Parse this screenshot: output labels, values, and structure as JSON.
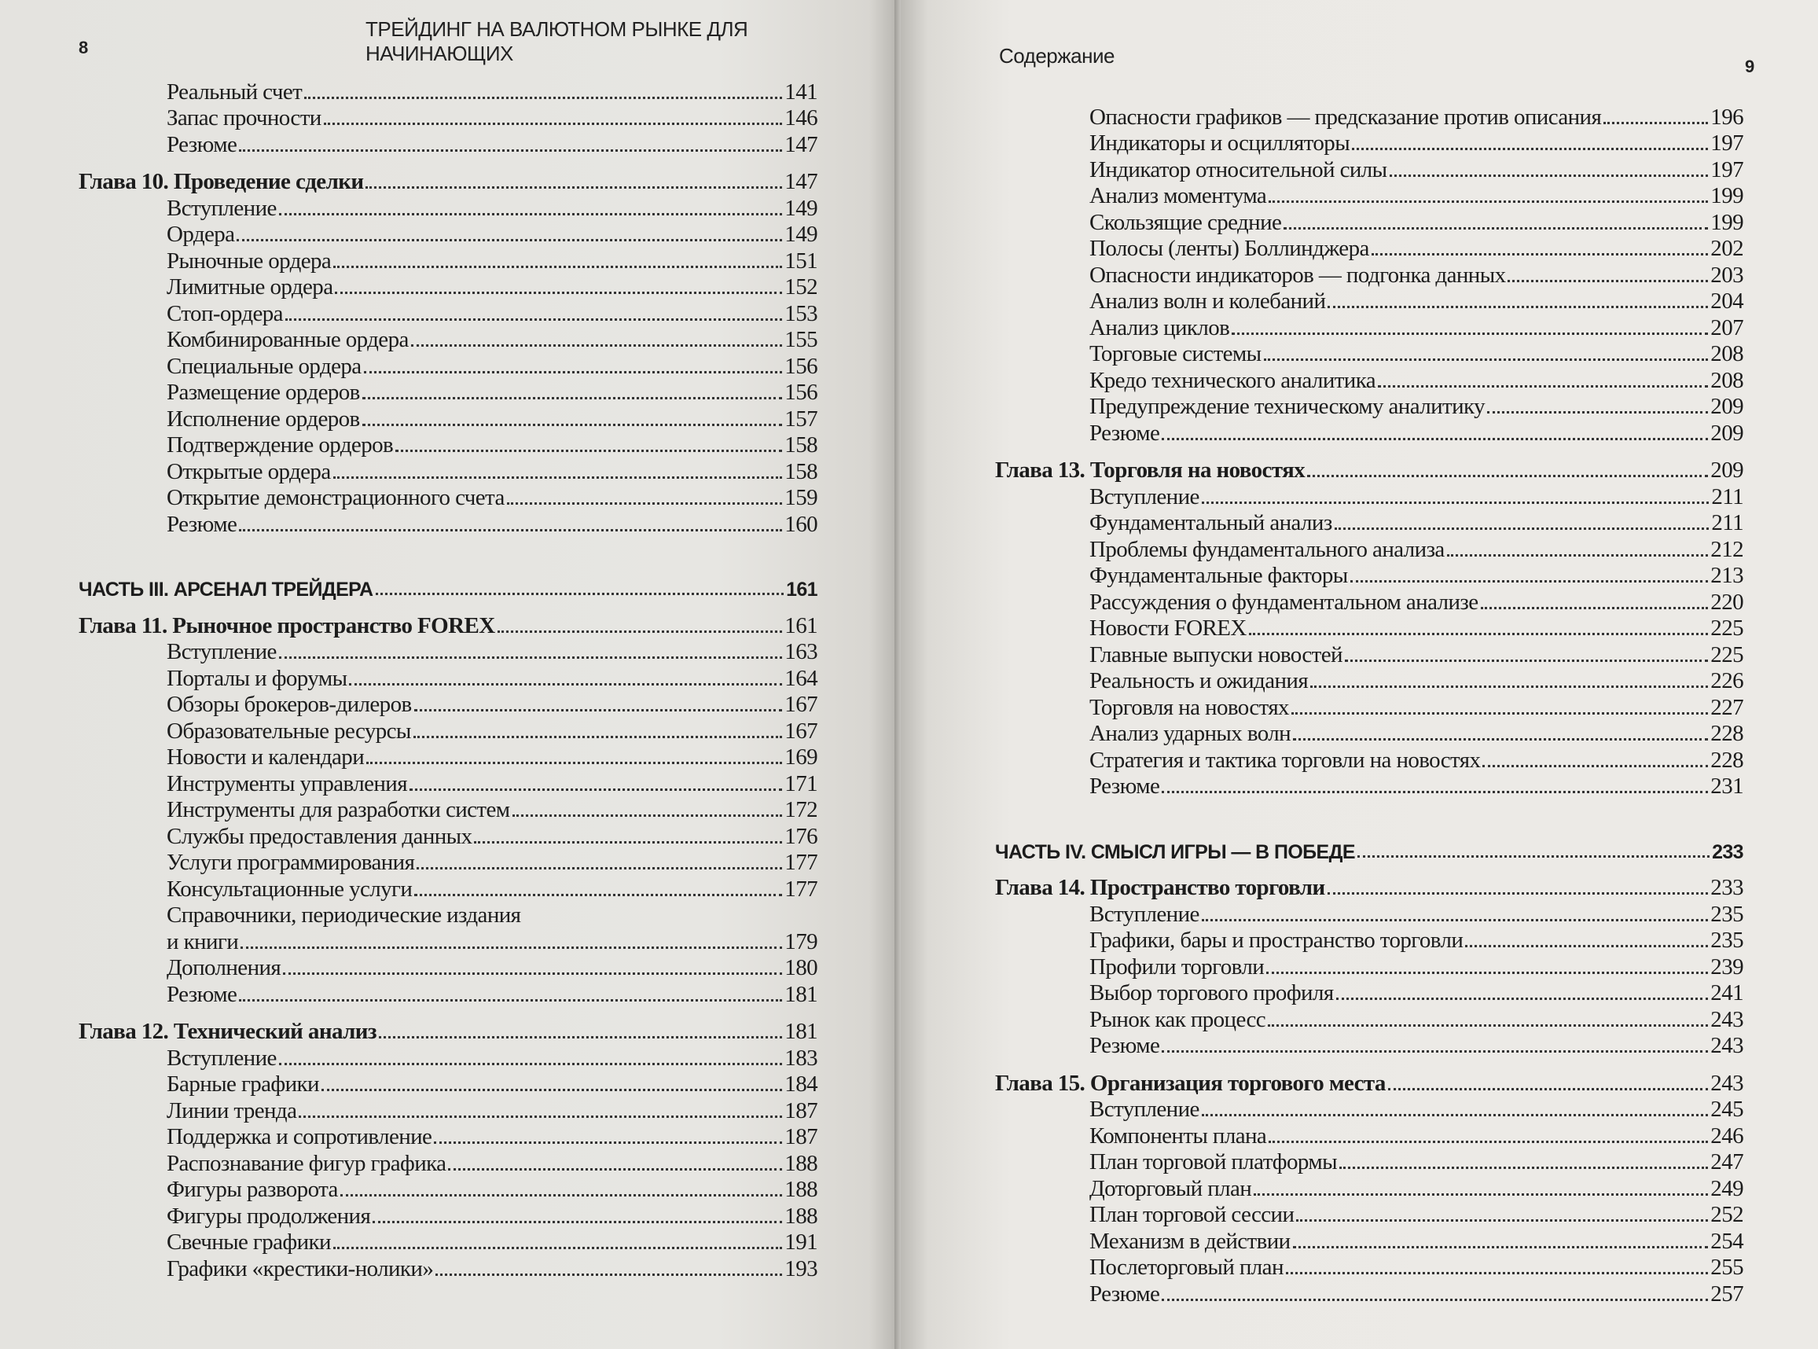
{
  "left_page": {
    "folio": "8",
    "running_head": "ТРЕЙДИНГ НА ВАЛЮТНОМ РЫНКЕ ДЛЯ НАЧИНАЮЩИХ",
    "entries": [
      {
        "type": "section",
        "label": "Реальный счет",
        "page": "141"
      },
      {
        "type": "section",
        "label": "Запас прочности",
        "page": "146"
      },
      {
        "type": "section",
        "label": "Резюме",
        "page": "147"
      },
      {
        "type": "chapter",
        "label": "Глава 10. Проведение сделки",
        "page": "147"
      },
      {
        "type": "section",
        "label": "Вступление",
        "page": "149"
      },
      {
        "type": "section",
        "label": "Ордера",
        "page": "149"
      },
      {
        "type": "section",
        "label": "Рыночные ордера",
        "page": "151"
      },
      {
        "type": "section",
        "label": "Лимитные ордера",
        "page": "152"
      },
      {
        "type": "section",
        "label": "Стоп-ордера",
        "page": "153"
      },
      {
        "type": "section",
        "label": "Комбинированные ордера",
        "page": "155"
      },
      {
        "type": "section",
        "label": "Специальные ордера",
        "page": "156"
      },
      {
        "type": "section",
        "label": "Размещение ордеров",
        "page": "156"
      },
      {
        "type": "section",
        "label": "Исполнение ордеров",
        "page": "157"
      },
      {
        "type": "section",
        "label": "Подтверждение ордеров",
        "page": "158"
      },
      {
        "type": "section",
        "label": "Открытые ордера",
        "page": "158"
      },
      {
        "type": "section",
        "label": "Открытие демонстрационного счета",
        "page": "159"
      },
      {
        "type": "section",
        "label": "Резюме",
        "page": "160"
      },
      {
        "type": "part",
        "label": "ЧАСТЬ III. АРСЕНАЛ ТРЕЙДЕРА",
        "page": "161"
      },
      {
        "type": "chapter",
        "label": "Глава 11. Рыночное пространство FOREX",
        "page": "161"
      },
      {
        "type": "section",
        "label": "Вступление",
        "page": "163"
      },
      {
        "type": "section",
        "label": "Порталы и форумы",
        "page": "164"
      },
      {
        "type": "section",
        "label": "Обзоры брокеров-дилеров",
        "page": "167"
      },
      {
        "type": "section",
        "label": "Образовательные ресурсы",
        "page": "167"
      },
      {
        "type": "section",
        "label": "Новости и календари",
        "page": "169"
      },
      {
        "type": "section",
        "label": "Инструменты управления",
        "page": "171"
      },
      {
        "type": "section",
        "label": "Инструменты для разработки систем",
        "page": "172"
      },
      {
        "type": "section",
        "label": "Службы предоставления данных",
        "page": "176"
      },
      {
        "type": "section",
        "label": "Услуги программирования",
        "page": "177"
      },
      {
        "type": "section",
        "label": "Консультационные услуги",
        "page": "177"
      },
      {
        "type": "section",
        "label": "Справочники, периодические издания",
        "page": ""
      },
      {
        "type": "section",
        "label": "и книги",
        "page": "179"
      },
      {
        "type": "section",
        "label": "Дополнения",
        "page": "180"
      },
      {
        "type": "section",
        "label": "Резюме",
        "page": "181"
      },
      {
        "type": "chapter",
        "label": "Глава 12. Технический анализ",
        "page": "181"
      },
      {
        "type": "section",
        "label": "Вступление",
        "page": "183"
      },
      {
        "type": "section",
        "label": "Барные графики",
        "page": "184"
      },
      {
        "type": "section",
        "label": "Линии тренда",
        "page": "187"
      },
      {
        "type": "section",
        "label": "Поддержка и сопротивление",
        "page": "187"
      },
      {
        "type": "section",
        "label": "Распознавание фигур графика",
        "page": "188"
      },
      {
        "type": "section",
        "label": "Фигуры разворота",
        "page": "188"
      },
      {
        "type": "section",
        "label": "Фигуры продолжения",
        "page": "188"
      },
      {
        "type": "section",
        "label": "Свечные графики",
        "page": "191"
      },
      {
        "type": "section",
        "label": "Графики «крестики-нолики»",
        "page": "193"
      }
    ]
  },
  "right_page": {
    "folio": "9",
    "running_head": "Содержание",
    "entries": [
      {
        "type": "section",
        "label": "Опасности графиков — предсказание против описания",
        "page": "196"
      },
      {
        "type": "section",
        "label": "Индикаторы и осцилляторы",
        "page": "197"
      },
      {
        "type": "section",
        "label": "Индикатор относительной силы",
        "page": "197"
      },
      {
        "type": "section",
        "label": "Анализ моментума",
        "page": "199"
      },
      {
        "type": "section",
        "label": "Скользящие средние",
        "page": "199"
      },
      {
        "type": "section",
        "label": "Полосы (ленты) Боллинджера",
        "page": "202"
      },
      {
        "type": "section",
        "label": "Опасности индикаторов — подгонка данных",
        "page": "203"
      },
      {
        "type": "section",
        "label": "Анализ волн и колебаний",
        "page": "204"
      },
      {
        "type": "section",
        "label": "Анализ циклов",
        "page": "207"
      },
      {
        "type": "section",
        "label": "Торговые системы",
        "page": "208"
      },
      {
        "type": "section",
        "label": "Кредо технического аналитика",
        "page": "208"
      },
      {
        "type": "section",
        "label": "Предупреждение техническому аналитику",
        "page": "209"
      },
      {
        "type": "section",
        "label": "Резюме",
        "page": "209"
      },
      {
        "type": "chapter",
        "label": "Глава 13. Торговля на новостях",
        "page": "209"
      },
      {
        "type": "section",
        "label": "Вступление",
        "page": "211"
      },
      {
        "type": "section",
        "label": "Фундаментальный анализ",
        "page": "211"
      },
      {
        "type": "section",
        "label": "Проблемы фундаментального анализа",
        "page": "212"
      },
      {
        "type": "section",
        "label": "Фундаментальные факторы",
        "page": "213"
      },
      {
        "type": "section",
        "label": "Рассуждения о фундаментальном анализе",
        "page": "220"
      },
      {
        "type": "section",
        "label": "Новости FOREX",
        "page": "225"
      },
      {
        "type": "section",
        "label": "Главные выпуски новостей",
        "page": "225"
      },
      {
        "type": "section",
        "label": "Реальность и ожидания",
        "page": "226"
      },
      {
        "type": "section",
        "label": "Торговля на новостях",
        "page": "227"
      },
      {
        "type": "section",
        "label": "Анализ ударных волн",
        "page": "228"
      },
      {
        "type": "section",
        "label": "Стратегия и тактика торговли на новостях",
        "page": "228"
      },
      {
        "type": "section",
        "label": "Резюме",
        "page": "231"
      },
      {
        "type": "part",
        "label": "ЧАСТЬ IV. СМЫСЛ ИГРЫ — В ПОБЕДЕ",
        "page": "233"
      },
      {
        "type": "chapter",
        "label": "Глава 14. Пространство торговли",
        "page": "233"
      },
      {
        "type": "section",
        "label": "Вступление",
        "page": "235"
      },
      {
        "type": "section",
        "label": "Графики, бары и пространство торговли",
        "page": "235"
      },
      {
        "type": "section",
        "label": "Профили торговли",
        "page": "239"
      },
      {
        "type": "section",
        "label": "Выбор торгового профиля",
        "page": "241"
      },
      {
        "type": "section",
        "label": "Рынок как процесс",
        "page": "243"
      },
      {
        "type": "section",
        "label": "Резюме",
        "page": "243"
      },
      {
        "type": "chapter",
        "label": "Глава 15. Организация торгового места",
        "page": "243"
      },
      {
        "type": "section",
        "label": "Вступление",
        "page": "245"
      },
      {
        "type": "section",
        "label": "Компоненты плана",
        "page": "246"
      },
      {
        "type": "section",
        "label": "План торговой платформы",
        "page": "247"
      },
      {
        "type": "section",
        "label": "Доторговый план",
        "page": "249"
      },
      {
        "type": "section",
        "label": "План торговой сессии",
        "page": "252"
      },
      {
        "type": "section",
        "label": "Механизм в действии",
        "page": "254"
      },
      {
        "type": "section",
        "label": "Послеторговый план",
        "page": "255"
      },
      {
        "type": "section",
        "label": "Резюме",
        "page": "257"
      }
    ]
  }
}
